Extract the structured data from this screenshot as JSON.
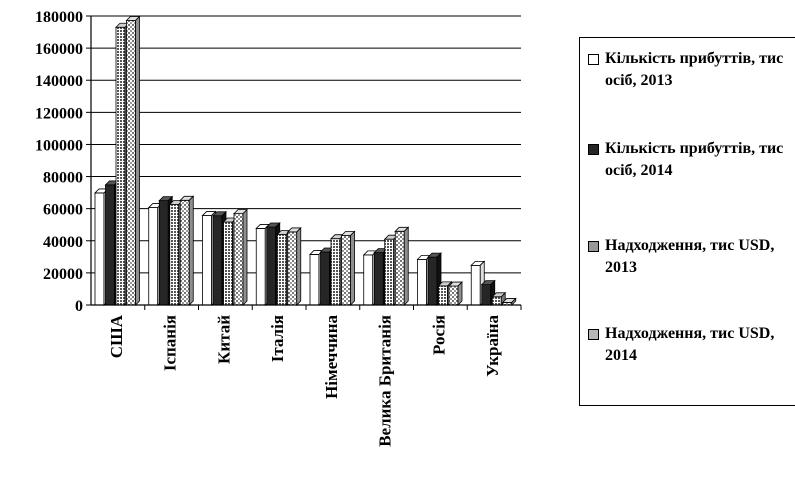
{
  "chart_data": {
    "type": "bar",
    "categories": [
      "США",
      "Іспанія",
      "Китай",
      "Італія",
      "Німеччина",
      "Велика Британія",
      "Росія",
      "Україна"
    ],
    "series": [
      {
        "name": "Кількість прибуттів, тис осіб, 2013",
        "color": "#ffffff",
        "values": [
          69800,
          60700,
          55700,
          47700,
          31500,
          31200,
          28400,
          24700
        ]
      },
      {
        "name": "Кількість прибуттів, тис осіб, 2014",
        "color": "#262626",
        "values": [
          74800,
          65000,
          55600,
          48600,
          33000,
          32600,
          29800,
          12700
        ]
      },
      {
        "name": "Надходження, тис USD, 2013",
        "color": "#9a9a9a",
        "values": [
          173000,
          62600,
          51700,
          43900,
          41300,
          41000,
          11900,
          5100
        ]
      },
      {
        "name": "Надходження, тис USD, 2014",
        "color": "#b8b8b8",
        "values": [
          177200,
          65200,
          56900,
          45500,
          43300,
          45900,
          11800,
          1600
        ]
      }
    ],
    "ylim": [
      0,
      180000
    ],
    "yticks": [
      "0",
      "20000",
      "40000",
      "60000",
      "80000",
      "100000",
      "120000",
      "140000",
      "160000",
      "180000"
    ],
    "grid": true,
    "legend_position": "right"
  }
}
